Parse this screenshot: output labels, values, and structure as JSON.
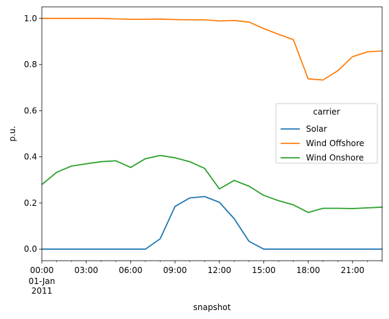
{
  "chart_data": {
    "type": "line",
    "xlabel": "snapshot",
    "ylabel": "p.u.",
    "x": [
      "00:00",
      "01:00",
      "02:00",
      "03:00",
      "04:00",
      "05:00",
      "06:00",
      "07:00",
      "08:00",
      "09:00",
      "10:00",
      "11:00",
      "12:00",
      "13:00",
      "14:00",
      "15:00",
      "16:00",
      "17:00",
      "18:00",
      "19:00",
      "20:00",
      "21:00",
      "22:00",
      "23:00"
    ],
    "x_ticks": [
      {
        "index": 0,
        "label": "00:00"
      },
      {
        "index": 3,
        "label": "03:00"
      },
      {
        "index": 6,
        "label": "06:00"
      },
      {
        "index": 9,
        "label": "09:00"
      },
      {
        "index": 12,
        "label": "12:00"
      },
      {
        "index": 15,
        "label": "15:00"
      },
      {
        "index": 18,
        "label": "18:00"
      },
      {
        "index": 21,
        "label": "21:00"
      }
    ],
    "x_date_label": [
      "01-Jan",
      "2011"
    ],
    "xlim": [
      0,
      23
    ],
    "ylim": [
      -0.05,
      1.05
    ],
    "y_ticks": [
      "0.0",
      "0.2",
      "0.4",
      "0.6",
      "0.8",
      "1.0"
    ],
    "grid": false,
    "legend": {
      "title": "carrier",
      "position": "center-right"
    },
    "series": [
      {
        "name": "Solar",
        "color": "#1f77b4",
        "values": [
          0,
          0,
          0,
          0,
          0,
          0,
          0,
          0,
          0.045,
          0.185,
          0.222,
          0.228,
          0.203,
          0.132,
          0.034,
          0,
          0,
          0,
          0,
          0,
          0,
          0,
          0,
          0
        ]
      },
      {
        "name": "Wind Offshore",
        "color": "#ff7f0e",
        "values": [
          1.0,
          1.0,
          1.0,
          1.0,
          1.0,
          0.998,
          0.996,
          0.996,
          0.997,
          0.995,
          0.994,
          0.994,
          0.989,
          0.991,
          0.984,
          0.956,
          0.931,
          0.908,
          0.738,
          0.733,
          0.773,
          0.834,
          0.855,
          0.859
        ]
      },
      {
        "name": "Wind Onshore",
        "color": "#2ca02c",
        "values": [
          0.28,
          0.333,
          0.36,
          0.37,
          0.379,
          0.383,
          0.354,
          0.392,
          0.406,
          0.396,
          0.379,
          0.35,
          0.261,
          0.298,
          0.273,
          0.233,
          0.21,
          0.192,
          0.159,
          0.177,
          0.177,
          0.176,
          0.179,
          0.182
        ]
      }
    ]
  }
}
